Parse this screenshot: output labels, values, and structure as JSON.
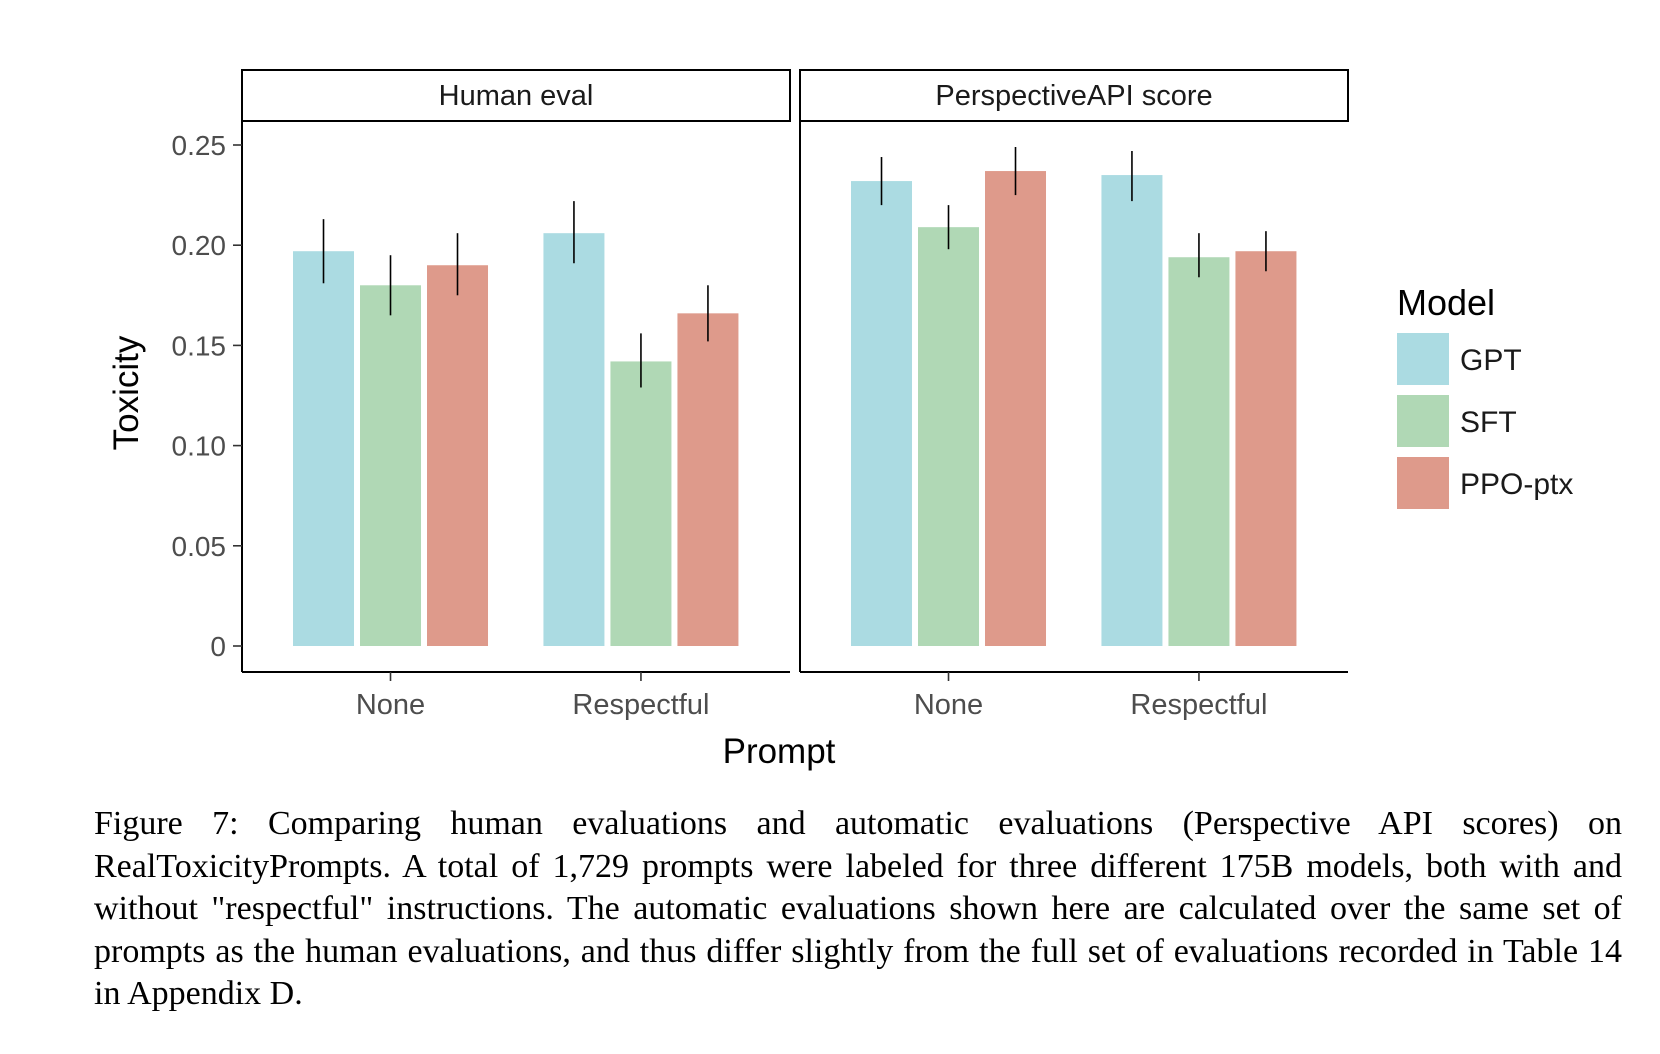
{
  "chart_data": {
    "type": "bar",
    "ylabel": "Toxicity",
    "xlabel": "Prompt",
    "ylim": [
      0,
      0.26
    ],
    "yticks": [
      0,
      0.05,
      0.1,
      0.15,
      0.2,
      0.25
    ],
    "ytick_labels": [
      "0",
      "0.05",
      "0.10",
      "0.15",
      "0.20",
      "0.25"
    ],
    "categories": [
      "None",
      "Respectful"
    ],
    "legend": {
      "title": "Model",
      "position": "right"
    },
    "series_styles": [
      {
        "name": "GPT",
        "color": "#abdbe2"
      },
      {
        "name": "SFT",
        "color": "#b0d8b5"
      },
      {
        "name": "PPO-ptx",
        "color": "#de9a8b"
      }
    ],
    "panels": [
      {
        "title": "Human eval",
        "series": [
          {
            "name": "GPT",
            "values": [
              0.197,
              0.206
            ],
            "err_low": [
              0.181,
              0.191
            ],
            "err_high": [
              0.213,
              0.222
            ]
          },
          {
            "name": "SFT",
            "values": [
              0.18,
              0.142
            ],
            "err_low": [
              0.165,
              0.129
            ],
            "err_high": [
              0.195,
              0.156
            ]
          },
          {
            "name": "PPO-ptx",
            "values": [
              0.19,
              0.166
            ],
            "err_low": [
              0.175,
              0.152
            ],
            "err_high": [
              0.206,
              0.18
            ]
          }
        ]
      },
      {
        "title": "PerspectiveAPI score",
        "series": [
          {
            "name": "GPT",
            "values": [
              0.232,
              0.235
            ],
            "err_low": [
              0.22,
              0.222
            ],
            "err_high": [
              0.244,
              0.247
            ]
          },
          {
            "name": "SFT",
            "values": [
              0.209,
              0.194
            ],
            "err_low": [
              0.198,
              0.184
            ],
            "err_high": [
              0.22,
              0.206
            ]
          },
          {
            "name": "PPO-ptx",
            "values": [
              0.237,
              0.197
            ],
            "err_low": [
              0.225,
              0.187
            ],
            "err_high": [
              0.249,
              0.207
            ]
          }
        ]
      }
    ]
  },
  "caption": "Figure 7: Comparing human evaluations and automatic evaluations (Perspective API scores) on RealToxicityPrompts. A total of 1,729 prompts were labeled for three different 175B models, both with and without \"respectful\" instructions. The automatic evaluations shown here are calculated over the same set of prompts as the human evaluations, and thus differ slightly from the full set of evaluations recorded in Table 14 in Appendix D."
}
